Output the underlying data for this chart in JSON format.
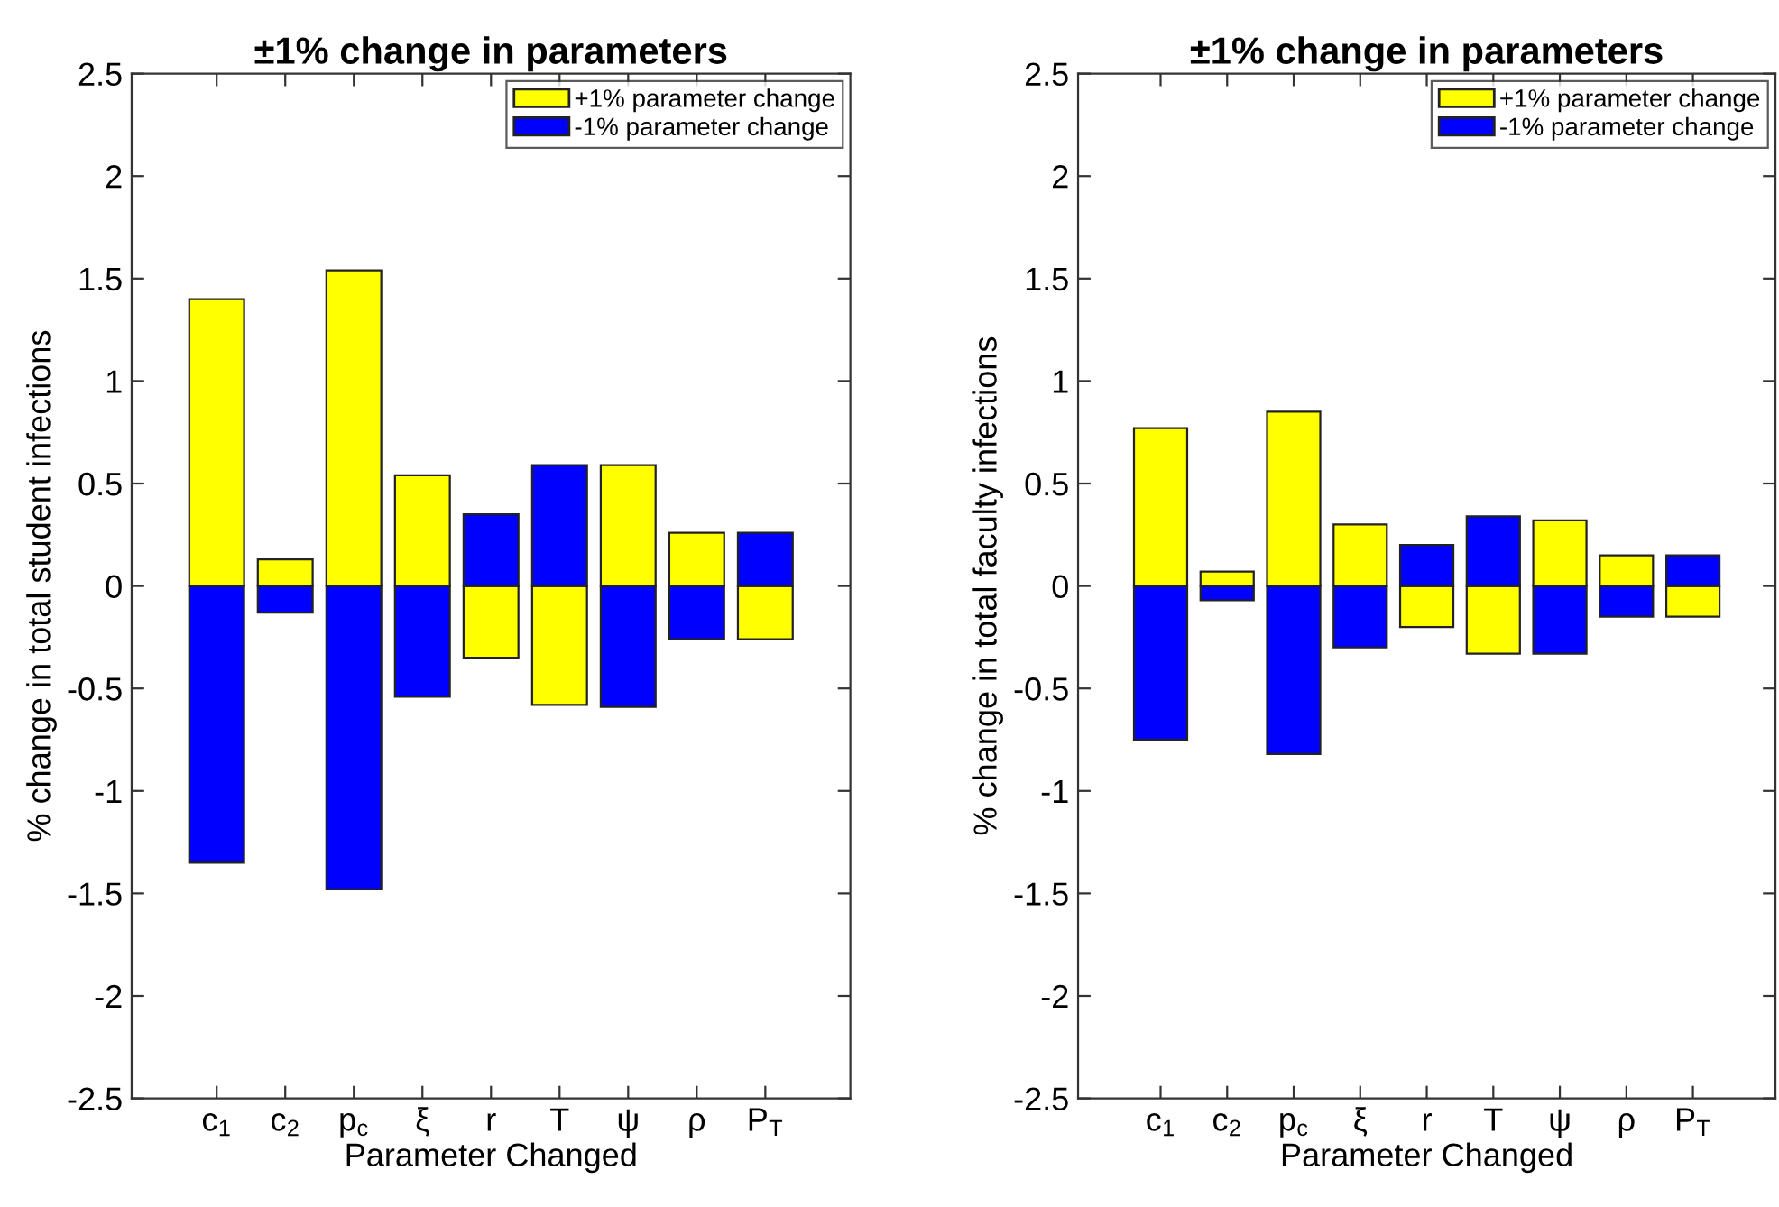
{
  "chart_data": [
    {
      "type": "bar",
      "title": "±1% change in parameters",
      "xlabel": "Parameter Changed",
      "ylabel": "% change in total student infections",
      "categories": [
        "c$_{1}$",
        "c$_{2}$",
        "p$_{c}$",
        "ξ",
        "r",
        "T",
        "ψ",
        "ρ",
        "P$_{T}$"
      ],
      "series": [
        {
          "name": "+1% parameter change",
          "color": "#ffff00",
          "values": [
            1.4,
            0.13,
            1.54,
            0.54,
            -0.35,
            -0.58,
            0.59,
            0.26,
            -0.26
          ]
        },
        {
          "name": "-1% parameter change",
          "color": "#0000ff",
          "values": [
            -1.35,
            -0.13,
            -1.48,
            -0.54,
            0.35,
            0.59,
            -0.59,
            -0.26,
            0.26
          ]
        }
      ],
      "ylim": [
        -2.5,
        2.5
      ],
      "yticks": [
        -2.5,
        -2,
        -1.5,
        -1,
        -0.5,
        0,
        0.5,
        1,
        1.5,
        2,
        2.5
      ],
      "legend": "top right",
      "stacked": true
    },
    {
      "type": "bar",
      "title": "±1% change in parameters",
      "xlabel": "Parameter Changed",
      "ylabel": "% change in total faculty infections",
      "categories": [
        "c$_{1}$",
        "c$_{2}$",
        "p$_{c}$",
        "ξ",
        "r",
        "T",
        "ψ",
        "ρ",
        "P$_{T}$"
      ],
      "series": [
        {
          "name": "+1% parameter change",
          "color": "#ffff00",
          "values": [
            0.77,
            0.07,
            0.85,
            0.3,
            -0.2,
            -0.33,
            0.32,
            0.15,
            -0.15
          ]
        },
        {
          "name": "-1% parameter change",
          "color": "#0000ff",
          "values": [
            -0.75,
            -0.07,
            -0.82,
            -0.3,
            0.2,
            0.34,
            -0.33,
            -0.15,
            0.15
          ]
        }
      ],
      "ylim": [
        -2.5,
        2.5
      ],
      "yticks": [
        -2.5,
        -2,
        -1.5,
        -1,
        -0.5,
        0,
        0.5,
        1,
        1.5,
        2,
        2.5
      ],
      "legend": "top right",
      "stacked": true
    }
  ]
}
